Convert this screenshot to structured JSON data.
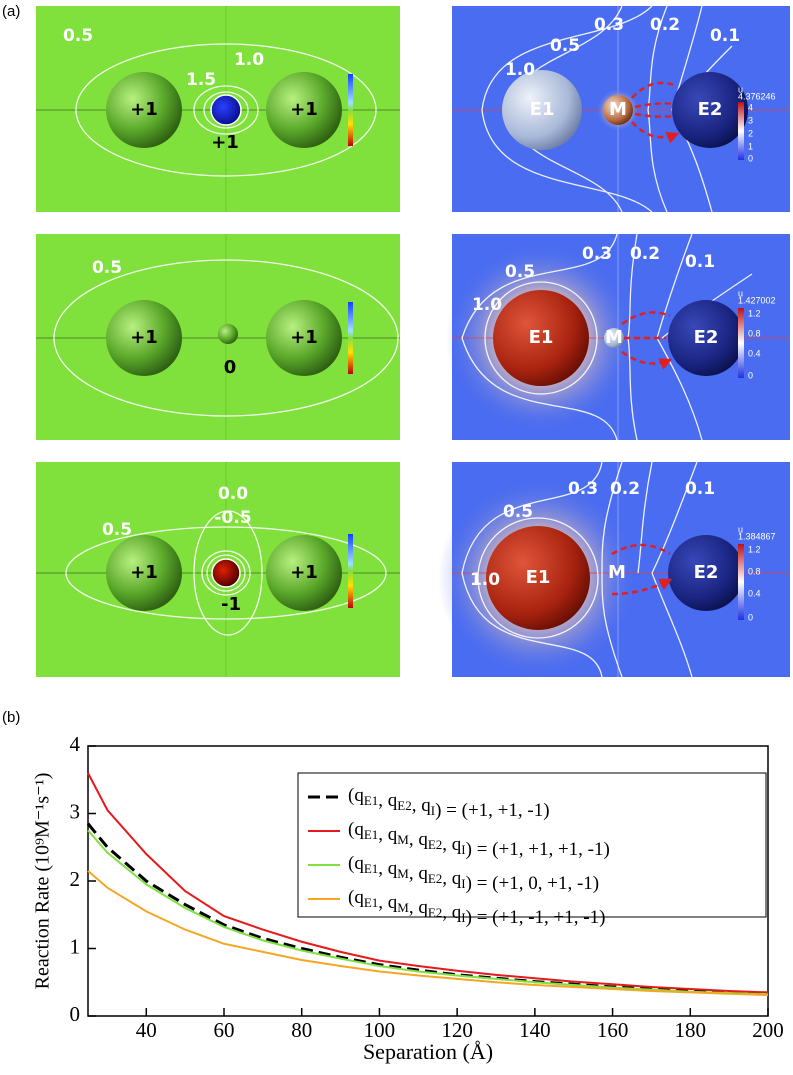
{
  "panel_a": {
    "label": "(a)",
    "panels": [
      {
        "contours": [
          "0.5",
          "1.0",
          "1.5"
        ],
        "charges": [
          "+1",
          "+1",
          "+1"
        ]
      },
      {
        "contours": [
          "0.3",
          "0.2",
          "0.1",
          "0.5",
          "1.0"
        ],
        "spheres": [
          "E1",
          "M",
          "E2"
        ],
        "colorbar": {
          "unit": "u",
          "max": "4.376246",
          "ticks": [
            "4",
            "3",
            "2",
            "1",
            "0"
          ]
        }
      },
      {
        "contours": [
          "0.5"
        ],
        "charges": [
          "+1",
          "+1",
          "0"
        ]
      },
      {
        "contours": [
          "0.3",
          "0.2",
          "0.1",
          "0.5",
          "1.0"
        ],
        "spheres": [
          "E1",
          "M",
          "E2"
        ],
        "colorbar": {
          "unit": "u",
          "max": "1.427002",
          "ticks": [
            "1.2",
            "0.8",
            "0.4",
            "0"
          ]
        }
      },
      {
        "contours": [
          "0.5",
          "0.0",
          "-0.5"
        ],
        "charges": [
          "+1",
          "+1",
          "-1"
        ]
      },
      {
        "contours": [
          "0.3",
          "0.2",
          "0.1",
          "0.5",
          "1.0"
        ],
        "spheres": [
          "E1",
          "M",
          "E2"
        ],
        "colorbar": {
          "unit": "u",
          "max": "1.384867",
          "ticks": [
            "1.2",
            "0.8",
            "0.4",
            "0"
          ]
        }
      }
    ]
  },
  "chart_data": {
    "type": "line",
    "panel_label": "(b)",
    "x_label": "Separation (Å)",
    "y_label": "Reaction Rate (10⁹M⁻¹s⁻¹)",
    "x": [
      25,
      30,
      40,
      50,
      60,
      70,
      80,
      90,
      100,
      110,
      120,
      130,
      140,
      150,
      160,
      170,
      180,
      190,
      200
    ],
    "series": [
      {
        "name": "(qE1, qE2, qI) = (+1, +1, -1)",
        "color": "#000000",
        "linestyle": "dashed",
        "values": [
          2.85,
          2.5,
          2.0,
          1.65,
          1.35,
          1.15,
          1.0,
          0.87,
          0.76,
          0.68,
          0.61,
          0.56,
          0.51,
          0.47,
          0.43,
          0.4,
          0.37,
          0.35,
          0.33
        ]
      },
      {
        "name": "(qE1, qM, qE2, qI) = (+1, +1, +1, -1)",
        "color": "#e41a1c",
        "linestyle": "solid",
        "values": [
          3.6,
          3.05,
          2.4,
          1.85,
          1.48,
          1.28,
          1.1,
          0.95,
          0.82,
          0.74,
          0.67,
          0.61,
          0.56,
          0.51,
          0.47,
          0.43,
          0.4,
          0.37,
          0.35
        ]
      },
      {
        "name": "(qE1, qM, qE2, qI) = (+1, 0, +1, -1)",
        "color": "#7fe040",
        "linestyle": "solid",
        "values": [
          2.75,
          2.42,
          1.95,
          1.6,
          1.32,
          1.12,
          0.97,
          0.85,
          0.74,
          0.66,
          0.6,
          0.55,
          0.5,
          0.46,
          0.42,
          0.39,
          0.36,
          0.34,
          0.32
        ]
      },
      {
        "name": "(qE1, qM, qE2, qI) = (+1, -1, +1, -1)",
        "color": "#f5a623",
        "linestyle": "solid",
        "values": [
          2.15,
          1.9,
          1.55,
          1.28,
          1.07,
          0.95,
          0.83,
          0.74,
          0.66,
          0.6,
          0.55,
          0.5,
          0.46,
          0.43,
          0.4,
          0.37,
          0.35,
          0.33,
          0.31
        ]
      }
    ],
    "xlim": [
      25,
      200
    ],
    "xticks": [
      40,
      60,
      80,
      100,
      120,
      140,
      160,
      180,
      200
    ],
    "ylim": [
      0,
      4
    ],
    "yticks": [
      0,
      1,
      2,
      3,
      4
    ],
    "legend": "upper right"
  }
}
